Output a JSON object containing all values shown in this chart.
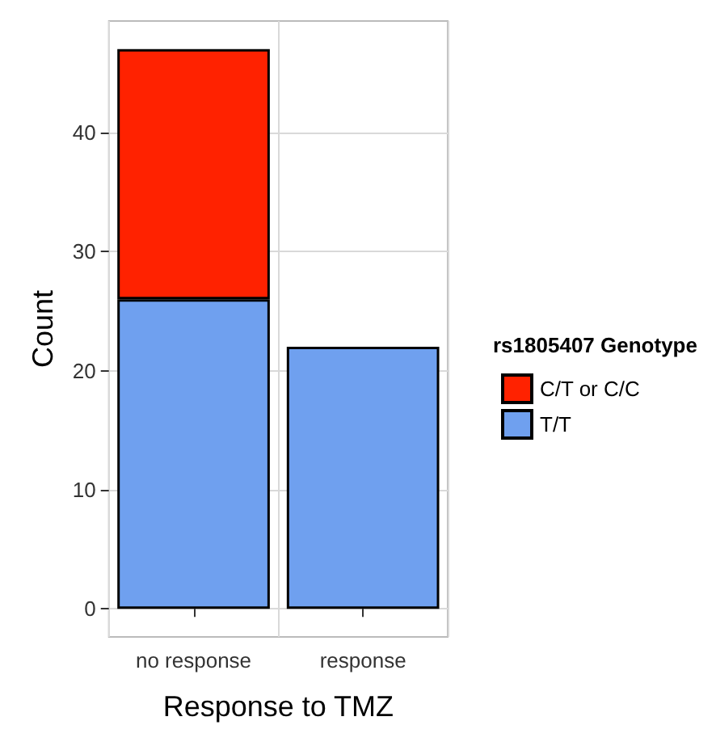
{
  "chart_data": {
    "type": "bar",
    "xlabel": "Response to TMZ",
    "ylabel": "Count",
    "legend_title": "rs1805407 Genotype",
    "categories": [
      "no response",
      "response"
    ],
    "stacked": true,
    "ylim": [
      -2.35,
      49.35
    ],
    "yticks": [
      0,
      10,
      20,
      30,
      40
    ],
    "grid": true,
    "legend": "right",
    "series": [
      {
        "name": "T/T",
        "color": "#6fa0ef",
        "values": [
          26,
          22
        ]
      },
      {
        "name": "C/T or C/C",
        "color": "#ff2200",
        "values": [
          21,
          null
        ]
      }
    ]
  }
}
